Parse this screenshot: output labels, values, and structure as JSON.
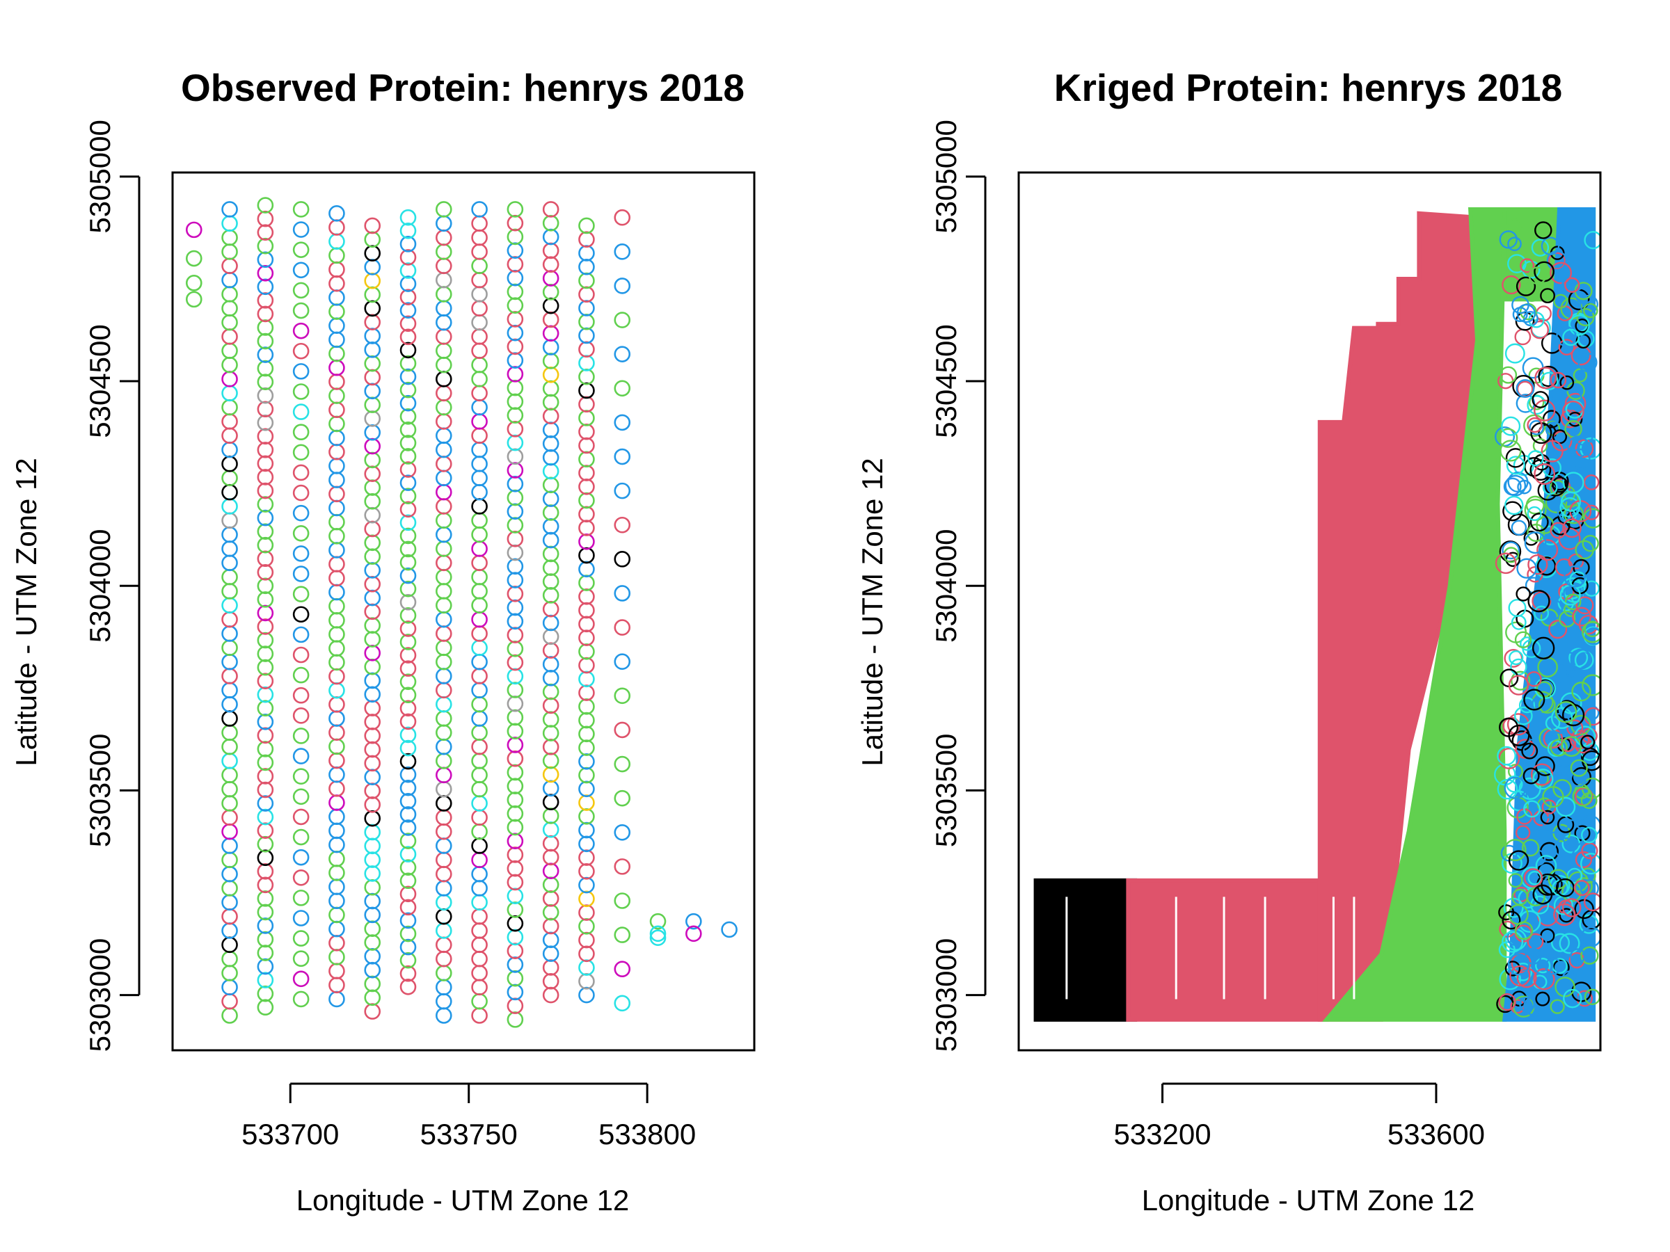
{
  "chart_data": [
    {
      "type": "scatter",
      "title": "Observed Protein: henrys 2018",
      "xlabel": "Longitude - UTM Zone 12",
      "ylabel": "Latitude - UTM Zone 12",
      "xlim": [
        533667,
        533830
      ],
      "ylim": [
        5302865,
        5305010
      ],
      "xticks": [
        533700,
        533750,
        533800
      ],
      "yticks": [
        5303000,
        5303500,
        5304000,
        5304500,
        5305000
      ],
      "xtick_labels": [
        "533700",
        "533750",
        "533800"
      ],
      "ytick_labels": [
        "5303000",
        "5303500",
        "5304000",
        "5304500",
        "5305000"
      ],
      "grid": false,
      "palette": [
        "#000000",
        "#DF536B",
        "#61D04F",
        "#2297E6",
        "#28E2E5",
        "#CD0BBC",
        "#F5C710",
        "#9E9E9E"
      ],
      "columns": [
        {
          "x": 533683,
          "y_start": 5302950,
          "y_end": 5304920,
          "n": 58
        },
        {
          "x": 533693,
          "y_start": 5302970,
          "y_end": 5304930,
          "n": 60
        },
        {
          "x": 533703,
          "y_start": 5302990,
          "y_end": 5304920,
          "n": 40
        },
        {
          "x": 533713,
          "y_start": 5302990,
          "y_end": 5304910,
          "n": 57
        },
        {
          "x": 533723,
          "y_start": 5302960,
          "y_end": 5304880,
          "n": 58
        },
        {
          "x": 533733,
          "y_start": 5303020,
          "y_end": 5304900,
          "n": 59
        },
        {
          "x": 533743,
          "y_start": 5302950,
          "y_end": 5304920,
          "n": 58
        },
        {
          "x": 533753,
          "y_start": 5302950,
          "y_end": 5304920,
          "n": 58
        },
        {
          "x": 533763,
          "y_start": 5302940,
          "y_end": 5304920,
          "n": 60
        },
        {
          "x": 533773,
          "y_start": 5303000,
          "y_end": 5304920,
          "n": 58
        },
        {
          "x": 533783,
          "y_start": 5303000,
          "y_end": 5304880,
          "n": 57
        },
        {
          "x": 533793,
          "y_start": 5302980,
          "y_end": 5304900,
          "n": 24
        }
      ],
      "points": [
        {
          "x": 533673,
          "y": 5304870
        },
        {
          "x": 533673,
          "y": 5304800
        },
        {
          "x": 533673,
          "y": 5304740
        },
        {
          "x": 533673,
          "y": 5304700
        },
        {
          "x": 533803,
          "y": 5303180
        },
        {
          "x": 533803,
          "y": 5303150
        },
        {
          "x": 533803,
          "y": 5303140
        },
        {
          "x": 533813,
          "y": 5303180
        },
        {
          "x": 533813,
          "y": 5303150
        },
        {
          "x": 533823,
          "y": 5303160
        }
      ]
    },
    {
      "type": "scatter",
      "title": "Kriged Protein: henrys 2018",
      "xlabel": "Longitude - UTM Zone 12",
      "ylabel": "Latitude - UTM Zone 12",
      "xlim": [
        532990,
        533840
      ],
      "ylim": [
        5302865,
        5305010
      ],
      "xticks": [
        533200,
        533600
      ],
      "yticks": [
        5303000,
        5303500,
        5304000,
        5304500,
        5305000
      ],
      "xtick_labels": [
        "533200",
        "533600"
      ],
      "ytick_labels": [
        "5303000",
        "5303500",
        "5304000",
        "5304500",
        "5305000"
      ],
      "grid": false,
      "regions": [
        {
          "color": "#000000",
          "polygon": [
            [
              533015,
              5302940
            ],
            [
              533160,
              5302940
            ],
            [
              533160,
              5303280
            ],
            [
              533015,
              5303280
            ]
          ]
        },
        {
          "color": "#DF536B",
          "polygon": [
            [
              533150,
              5302940
            ],
            [
              533440,
              5302940
            ],
            [
              533440,
              5303280
            ],
            [
              533150,
              5303280
            ]
          ]
        },
        {
          "color": "#DF536B",
          "polygon": [
            [
              533430,
              5302940
            ],
            [
              533520,
              5302940
            ],
            [
              533560,
              5303600
            ],
            [
              533620,
              5304000
            ],
            [
              533660,
              5304300
            ],
            [
              533690,
              5304600
            ],
            [
              533660,
              5304900
            ],
            [
              533575,
              5304910
            ],
            [
              533575,
              5304750
            ],
            [
              533545,
              5304750
            ],
            [
              533545,
              5304640
            ],
            [
              533515,
              5304640
            ],
            [
              533515,
              5304630
            ],
            [
              533480,
              5304630
            ],
            [
              533465,
              5304400
            ],
            [
              533430,
              5304400
            ]
          ]
        },
        {
          "color": "#61D04F",
          "polygon": [
            [
              533440,
              5302940
            ],
            [
              533700,
              5302940
            ],
            [
              533700,
              5303400
            ],
            [
              533690,
              5304200
            ],
            [
              533700,
              5304920
            ],
            [
              533650,
              5304920
            ],
            [
              533660,
              5304600
            ],
            [
              533640,
              5304300
            ],
            [
              533620,
              5304000
            ],
            [
              533590,
              5303700
            ],
            [
              533560,
              5303400
            ],
            [
              533520,
              5303100
            ]
          ]
        },
        {
          "color": "#61D04F",
          "polygon": [
            [
              533700,
              5304700
            ],
            [
              533830,
              5304700
            ],
            [
              533830,
              5304920
            ],
            [
              533700,
              5304920
            ]
          ]
        },
        {
          "color": "#2297E6",
          "polygon": [
            [
              533700,
              5302940
            ],
            [
              533830,
              5302940
            ],
            [
              533830,
              5304920
            ],
            [
              533780,
              5304920
            ],
            [
              533760,
              5304200
            ],
            [
              533720,
              5303600
            ],
            [
              533710,
              5303100
            ]
          ]
        }
      ]
    }
  ]
}
